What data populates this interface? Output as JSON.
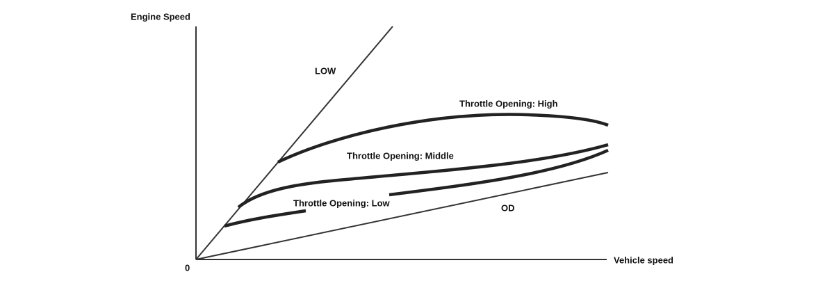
{
  "axes": {
    "y_label": "Engine Speed",
    "x_label": "Vehicle speed",
    "origin": "0"
  },
  "lines": [
    {
      "label": "LOW"
    },
    {
      "label": "OD"
    }
  ],
  "curves": [
    {
      "label": "Throttle Opening: High"
    },
    {
      "label": "Throttle Opening: Middle"
    },
    {
      "label": "Throttle Opening: Low"
    }
  ]
}
